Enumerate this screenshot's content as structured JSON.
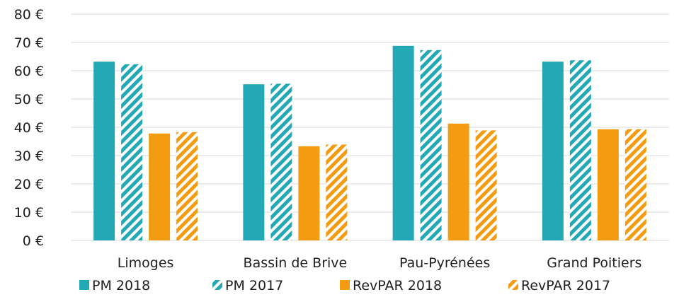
{
  "chart_data": {
    "type": "bar",
    "title": "",
    "xlabel": "",
    "ylabel": "",
    "categories": [
      "Limoges",
      "Bassin de Brive",
      "Pau-Pyrénées",
      "Grand Poitiers"
    ],
    "series": [
      {
        "name": "PM 2018",
        "values": [
          63.2,
          55.2,
          68.8,
          63.2
        ],
        "color": "#23a9b5",
        "pattern": "solid"
      },
      {
        "name": "PM 2017",
        "values": [
          62.3,
          55.4,
          67.3,
          63.7
        ],
        "color": "#23a9b5",
        "pattern": "hatched"
      },
      {
        "name": "RevPAR 2018",
        "values": [
          37.8,
          33.3,
          41.3,
          39.3
        ],
        "color": "#f39c12",
        "pattern": "solid"
      },
      {
        "name": "RevPAR 2017",
        "values": [
          38.3,
          33.9,
          38.9,
          39.3
        ],
        "color": "#f39c12",
        "pattern": "hatched"
      }
    ],
    "ylim": [
      0,
      80
    ],
    "yticks": [
      0,
      10,
      20,
      30,
      40,
      50,
      60,
      70,
      80
    ],
    "ytick_labels": [
      "0 €",
      "10 €",
      "20 €",
      "30 €",
      "40 €",
      "50 €",
      "60 €",
      "70 €",
      "80 €"
    ],
    "grid": true,
    "legend_position": "bottom"
  }
}
